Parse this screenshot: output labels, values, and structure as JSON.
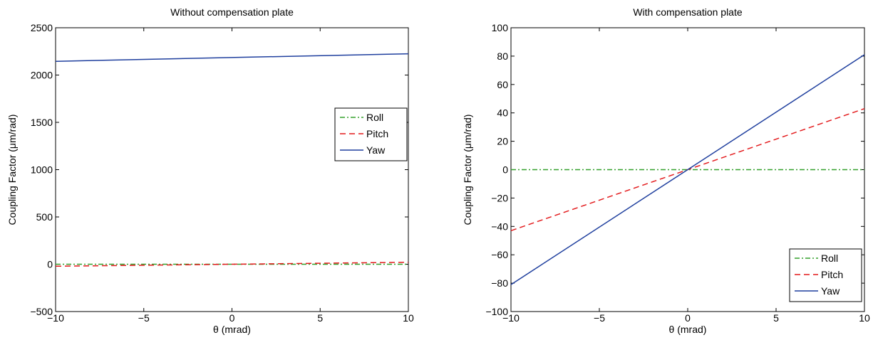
{
  "chart_data": [
    {
      "type": "line",
      "title": "Without compensation plate",
      "xlabel": "θ (mrad)",
      "ylabel": "Coupling Factor (μm/rad)",
      "xlim": [
        -10,
        10
      ],
      "ylim": [
        -500,
        2500
      ],
      "xticks": [
        -10,
        -5,
        0,
        5,
        10
      ],
      "yticks": [
        -500,
        0,
        500,
        1000,
        1500,
        2000,
        2500
      ],
      "xtick_labels": [
        "−10",
        "−5",
        "0",
        "5",
        "10"
      ],
      "ytick_labels": [
        "−500",
        "0",
        "500",
        "1000",
        "1500",
        "2000",
        "2500"
      ],
      "grid": false,
      "legend_position": "right",
      "series": [
        {
          "name": "Roll",
          "color": "#33a02c",
          "style": "dashdot",
          "x": [
            -10,
            10
          ],
          "y": [
            0,
            0
          ]
        },
        {
          "name": "Pitch",
          "color": "#e31a1c",
          "style": "dashed",
          "x": [
            -10,
            10
          ],
          "y": [
            -21,
            21
          ]
        },
        {
          "name": "Yaw",
          "color": "#1f3f9e",
          "style": "solid",
          "x": [
            -10,
            10
          ],
          "y": [
            2145,
            2225
          ]
        }
      ]
    },
    {
      "type": "line",
      "title": "With compensation plate",
      "xlabel": "θ (mrad)",
      "ylabel": "Coupling Factor (μm/rad)",
      "xlim": [
        -10,
        10
      ],
      "ylim": [
        -100,
        100
      ],
      "xticks": [
        -10,
        -5,
        0,
        5,
        10
      ],
      "yticks": [
        -100,
        -80,
        -60,
        -40,
        -20,
        0,
        20,
        40,
        60,
        80,
        100
      ],
      "xtick_labels": [
        "−10",
        "−5",
        "0",
        "5",
        "10"
      ],
      "ytick_labels": [
        "−100",
        "−80",
        "−60",
        "−40",
        "−20",
        "0",
        "20",
        "40",
        "60",
        "80",
        "100"
      ],
      "grid": false,
      "legend_position": "bottom-right",
      "series": [
        {
          "name": "Roll",
          "color": "#33a02c",
          "style": "dashdot",
          "x": [
            -10,
            10
          ],
          "y": [
            0,
            0
          ]
        },
        {
          "name": "Pitch",
          "color": "#e31a1c",
          "style": "dashed",
          "x": [
            -10,
            10
          ],
          "y": [
            -43,
            43
          ]
        },
        {
          "name": "Yaw",
          "color": "#1f3f9e",
          "style": "solid",
          "x": [
            -10,
            10
          ],
          "y": [
            -81,
            81
          ]
        }
      ]
    }
  ]
}
